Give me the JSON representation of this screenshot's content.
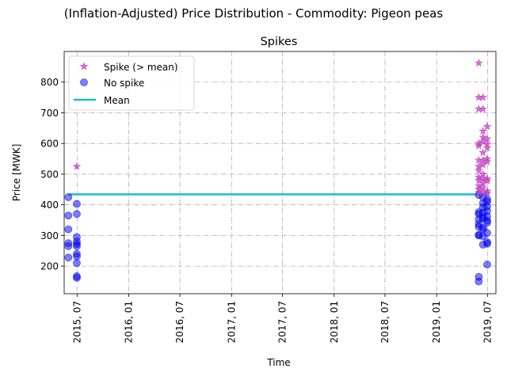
{
  "figure": {
    "suptitle": "(Inflation-Adjusted) Price Distribution - Commodity: Pigeon peas"
  },
  "chart_data": {
    "type": "scatter",
    "title": "Spikes",
    "xlabel": "Time",
    "ylabel": "Price [MWK]",
    "x_range": [
      "2015-05-16",
      "2019-07-31"
    ],
    "ylim": [
      110,
      900
    ],
    "x_ticks": [
      {
        "date": "2015-07-01",
        "label": "2015, 07"
      },
      {
        "date": "2016-01-01",
        "label": "2016, 01"
      },
      {
        "date": "2016-07-01",
        "label": "2016, 07"
      },
      {
        "date": "2017-01-01",
        "label": "2017, 01"
      },
      {
        "date": "2017-07-01",
        "label": "2017, 07"
      },
      {
        "date": "2018-01-01",
        "label": "2018, 01"
      },
      {
        "date": "2018-07-01",
        "label": "2018, 07"
      },
      {
        "date": "2019-01-01",
        "label": "2019, 01"
      },
      {
        "date": "2019-07-01",
        "label": "2019, 07"
      }
    ],
    "y_ticks": [
      200,
      300,
      400,
      500,
      600,
      700,
      800
    ],
    "grid": true,
    "grid_style": "dashdot",
    "legend_position": "upper-left",
    "mean_value": 434,
    "mean_x_range": [
      "2015-06-01",
      "2019-07-01"
    ],
    "series": [
      {
        "name": "Spike (> mean)",
        "marker": "star",
        "color": "#c040c0",
        "points": [
          {
            "date": "2015-06-30",
            "value": 525
          },
          {
            "date": "2019-05-31",
            "value": 862
          },
          {
            "date": "2019-05-31",
            "value": 750
          },
          {
            "date": "2019-05-31",
            "value": 712
          },
          {
            "date": "2019-05-31",
            "value": 600
          },
          {
            "date": "2019-05-31",
            "value": 592
          },
          {
            "date": "2019-05-31",
            "value": 545
          },
          {
            "date": "2019-05-31",
            "value": 525
          },
          {
            "date": "2019-05-31",
            "value": 512
          },
          {
            "date": "2019-05-31",
            "value": 490
          },
          {
            "date": "2019-05-31",
            "value": 480
          },
          {
            "date": "2019-05-31",
            "value": 462
          },
          {
            "date": "2019-05-31",
            "value": 450
          },
          {
            "date": "2019-05-31",
            "value": 440
          },
          {
            "date": "2019-06-15",
            "value": 750
          },
          {
            "date": "2019-06-15",
            "value": 712
          },
          {
            "date": "2019-06-15",
            "value": 640
          },
          {
            "date": "2019-06-15",
            "value": 620
          },
          {
            "date": "2019-06-15",
            "value": 605
          },
          {
            "date": "2019-06-15",
            "value": 570
          },
          {
            "date": "2019-06-15",
            "value": 545
          },
          {
            "date": "2019-06-15",
            "value": 530
          },
          {
            "date": "2019-06-15",
            "value": 500
          },
          {
            "date": "2019-06-15",
            "value": 485
          },
          {
            "date": "2019-06-15",
            "value": 470
          },
          {
            "date": "2019-06-15",
            "value": 455
          },
          {
            "date": "2019-06-15",
            "value": 440
          },
          {
            "date": "2019-06-30",
            "value": 655
          },
          {
            "date": "2019-06-30",
            "value": 615
          },
          {
            "date": "2019-06-30",
            "value": 598
          },
          {
            "date": "2019-06-30",
            "value": 585
          },
          {
            "date": "2019-06-30",
            "value": 550
          },
          {
            "date": "2019-06-30",
            "value": 540
          },
          {
            "date": "2019-06-30",
            "value": 485
          },
          {
            "date": "2019-06-30",
            "value": 478
          },
          {
            "date": "2019-06-30",
            "value": 445
          },
          {
            "date": "2019-06-30",
            "value": 438
          }
        ]
      },
      {
        "name": "No spike",
        "marker": "circle",
        "color": "#0000ee",
        "points": [
          {
            "date": "2015-05-31",
            "value": 425
          },
          {
            "date": "2015-05-31",
            "value": 365
          },
          {
            "date": "2015-05-31",
            "value": 320
          },
          {
            "date": "2015-05-31",
            "value": 275
          },
          {
            "date": "2015-05-31",
            "value": 265
          },
          {
            "date": "2015-05-31",
            "value": 228
          },
          {
            "date": "2015-06-30",
            "value": 403
          },
          {
            "date": "2015-06-30",
            "value": 370
          },
          {
            "date": "2015-06-30",
            "value": 295
          },
          {
            "date": "2015-06-30",
            "value": 280
          },
          {
            "date": "2015-06-30",
            "value": 272
          },
          {
            "date": "2015-06-30",
            "value": 265
          },
          {
            "date": "2015-06-30",
            "value": 240
          },
          {
            "date": "2015-06-30",
            "value": 232
          },
          {
            "date": "2015-06-30",
            "value": 210
          },
          {
            "date": "2015-06-30",
            "value": 167
          },
          {
            "date": "2015-06-30",
            "value": 162
          },
          {
            "date": "2019-05-31",
            "value": 432
          },
          {
            "date": "2019-05-31",
            "value": 376
          },
          {
            "date": "2019-05-31",
            "value": 370
          },
          {
            "date": "2019-05-31",
            "value": 352
          },
          {
            "date": "2019-05-31",
            "value": 337
          },
          {
            "date": "2019-05-31",
            "value": 328
          },
          {
            "date": "2019-05-31",
            "value": 302
          },
          {
            "date": "2019-05-31",
            "value": 300
          },
          {
            "date": "2019-05-31",
            "value": 165
          },
          {
            "date": "2019-05-31",
            "value": 150
          },
          {
            "date": "2019-06-15",
            "value": 425
          },
          {
            "date": "2019-06-15",
            "value": 405
          },
          {
            "date": "2019-06-15",
            "value": 392
          },
          {
            "date": "2019-06-15",
            "value": 375
          },
          {
            "date": "2019-06-15",
            "value": 360
          },
          {
            "date": "2019-06-15",
            "value": 355
          },
          {
            "date": "2019-06-15",
            "value": 325
          },
          {
            "date": "2019-06-15",
            "value": 320
          },
          {
            "date": "2019-06-15",
            "value": 297
          },
          {
            "date": "2019-06-15",
            "value": 270
          },
          {
            "date": "2019-06-30",
            "value": 418
          },
          {
            "date": "2019-06-30",
            "value": 410
          },
          {
            "date": "2019-06-30",
            "value": 395
          },
          {
            "date": "2019-06-30",
            "value": 380
          },
          {
            "date": "2019-06-30",
            "value": 362
          },
          {
            "date": "2019-06-30",
            "value": 348
          },
          {
            "date": "2019-06-30",
            "value": 342
          },
          {
            "date": "2019-06-30",
            "value": 308
          },
          {
            "date": "2019-06-30",
            "value": 278
          },
          {
            "date": "2019-06-30",
            "value": 273
          },
          {
            "date": "2019-06-30",
            "value": 205
          }
        ]
      },
      {
        "name": "Mean",
        "marker": "line",
        "color": "#17becf"
      }
    ]
  }
}
